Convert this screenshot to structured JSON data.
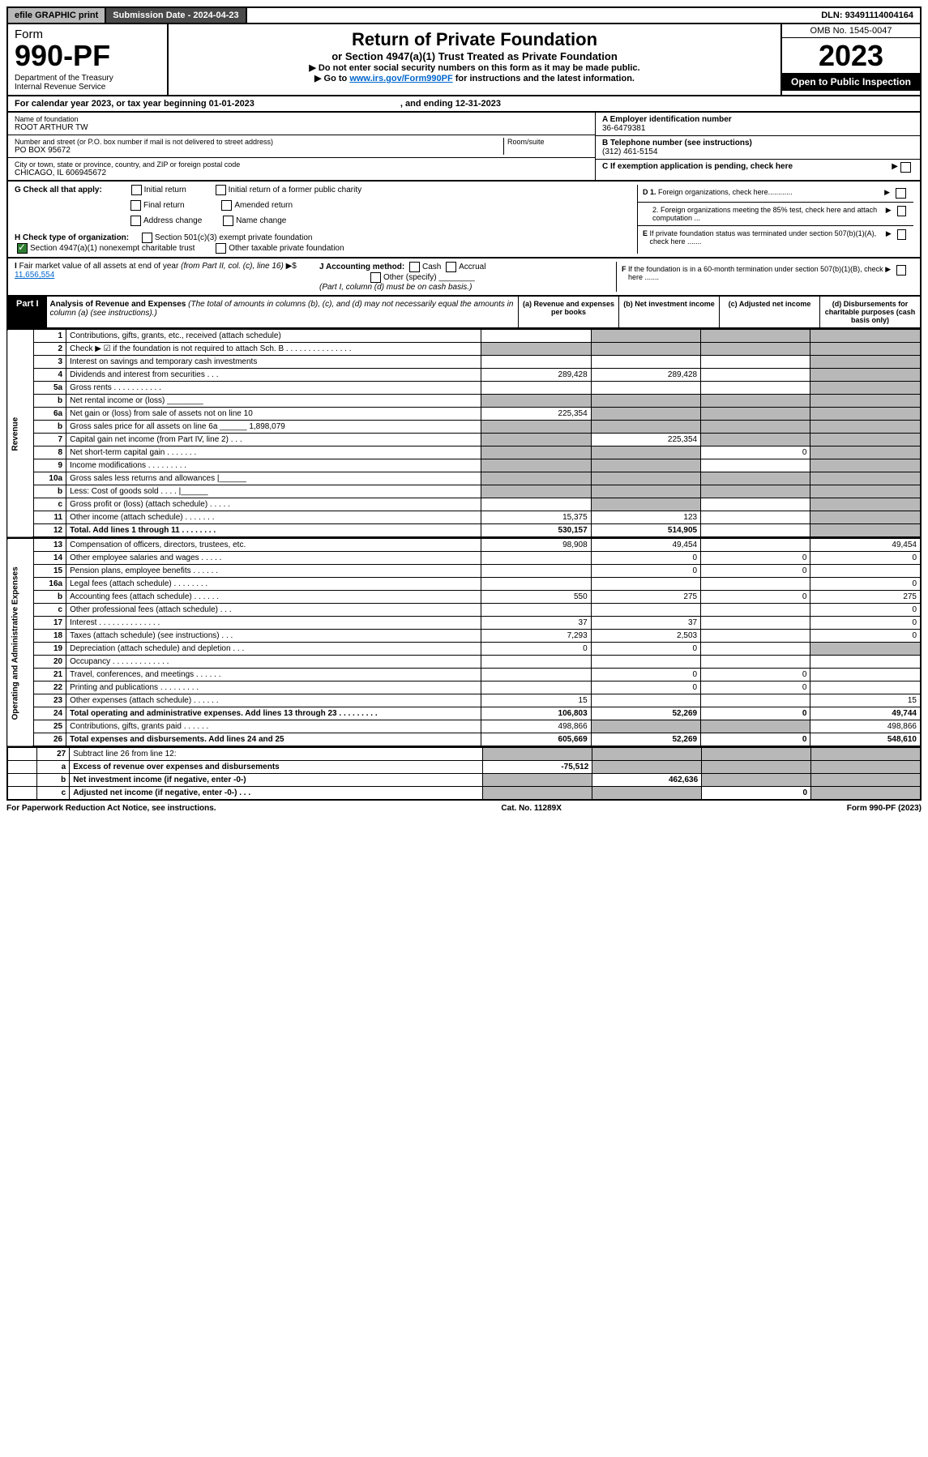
{
  "topbar": {
    "efile": "efile GRAPHIC print",
    "subdate_label": "Submission Date - ",
    "subdate": "2024-04-23",
    "dln_label": "DLN: ",
    "dln": "93491114004164"
  },
  "header": {
    "form_label": "Form",
    "form_no": "990-PF",
    "dept": "Department of the Treasury\nInternal Revenue Service",
    "title": "Return of Private Foundation",
    "subtitle": "or Section 4947(a)(1) Trust Treated as Private Foundation",
    "instr1": "▶ Do not enter social security numbers on this form as it may be made public.",
    "instr2": "▶ Go to ",
    "instr_link": "www.irs.gov/Form990PF",
    "instr3": " for instructions and the latest information.",
    "omb": "OMB No. 1545-0047",
    "year": "2023",
    "open": "Open to Public Inspection"
  },
  "calyear": {
    "text": "For calendar year 2023, or tax year beginning 01-01-2023",
    "ending": ", and ending 12-31-2023"
  },
  "foundation": {
    "name_label": "Name of foundation",
    "name": "ROOT ARTHUR TW",
    "addr_label": "Number and street (or P.O. box number if mail is not delivered to street address)",
    "room_label": "Room/suite",
    "addr": "PO BOX 95672",
    "city_label": "City or town, state or province, country, and ZIP or foreign postal code",
    "city": "CHICAGO, IL  606945672",
    "ein_label": "A Employer identification number",
    "ein": "36-6479381",
    "phone_label": "B Telephone number (see instructions)",
    "phone": "(312) 461-5154",
    "c_label": "C If exemption application is pending, check here",
    "d1": "D 1. Foreign organizations, check here............",
    "d2": "2. Foreign organizations meeting the 85% test, check here and attach computation ...",
    "e_label": "E If private foundation status was terminated under section 507(b)(1)(A), check here .......",
    "f_label": "F If the foundation is in a 60-month termination under section 507(b)(1)(B), check here ......."
  },
  "g": {
    "label": "G Check all that apply:",
    "initial": "Initial return",
    "initial_former": "Initial return of a former public charity",
    "final": "Final return",
    "amended": "Amended return",
    "addr_change": "Address change",
    "name_change": "Name change"
  },
  "h": {
    "label": "H Check type of organization:",
    "s501": "Section 501(c)(3) exempt private foundation",
    "s4947": "Section 4947(a)(1) nonexempt charitable trust",
    "other_tax": "Other taxable private foundation"
  },
  "i": {
    "label": "I Fair market value of all assets at end of year (from Part II, col. (c), line 16)",
    "amount": "11,656,554"
  },
  "j": {
    "label": "J Accounting method:",
    "cash": "Cash",
    "accrual": "Accrual",
    "other": "Other (specify)",
    "note": "(Part I, column (d) must be on cash basis.)"
  },
  "part1": {
    "label": "Part I",
    "title": "Analysis of Revenue and Expenses",
    "note": "(The total of amounts in columns (b), (c), and (d) may not necessarily equal the amounts in column (a) (see instructions).)",
    "col_a": "(a) Revenue and expenses per books",
    "col_b": "(b) Net investment income",
    "col_c": "(c) Adjusted net income",
    "col_d": "(d) Disbursements for charitable purposes (cash basis only)"
  },
  "rev_label": "Revenue",
  "exp_label": "Operating and Administrative Expenses",
  "rows": [
    {
      "n": "1",
      "d": "Contributions, gifts, grants, etc., received (attach schedule)",
      "a": "",
      "b": "shade",
      "c": "shade",
      "e": "shade"
    },
    {
      "n": "2",
      "d": "Check ▶ ☑ if the foundation is not required to attach Sch. B   .   .   .   .   .   .   .   .   .   .   .   .   .   .   .",
      "a": "shade",
      "b": "shade",
      "c": "shade",
      "e": "shade"
    },
    {
      "n": "3",
      "d": "Interest on savings and temporary cash investments",
      "a": "",
      "b": "",
      "c": "",
      "e": "shade"
    },
    {
      "n": "4",
      "d": "Dividends and interest from securities   .   .   .",
      "a": "289,428",
      "b": "289,428",
      "c": "",
      "e": "shade"
    },
    {
      "n": "5a",
      "d": "Gross rents   .   .   .   .   .   .   .   .   .   .   .",
      "a": "",
      "b": "",
      "c": "",
      "e": "shade"
    },
    {
      "n": "b",
      "d": "Net rental income or (loss)  ________",
      "a": "shade",
      "b": "shade",
      "c": "shade",
      "e": "shade"
    },
    {
      "n": "6a",
      "d": "Net gain or (loss) from sale of assets not on line 10",
      "a": "225,354",
      "b": "shade",
      "c": "shade",
      "e": "shade"
    },
    {
      "n": "b",
      "d": "Gross sales price for all assets on line 6a ______ 1,898,079",
      "a": "shade",
      "b": "shade",
      "c": "shade",
      "e": "shade"
    },
    {
      "n": "7",
      "d": "Capital gain net income (from Part IV, line 2)   .   .   .",
      "a": "shade",
      "b": "225,354",
      "c": "shade",
      "e": "shade"
    },
    {
      "n": "8",
      "d": "Net short-term capital gain   .   .   .   .   .   .   .",
      "a": "shade",
      "b": "shade",
      "c": "0",
      "e": "shade"
    },
    {
      "n": "9",
      "d": "Income modifications   .   .   .   .   .   .   .   .   .",
      "a": "shade",
      "b": "shade",
      "c": "",
      "e": "shade"
    },
    {
      "n": "10a",
      "d": "Gross sales less returns and allowances  |______",
      "a": "shade",
      "b": "shade",
      "c": "shade",
      "e": "shade"
    },
    {
      "n": "b",
      "d": "Less: Cost of goods sold   .   .   .   .   |______",
      "a": "shade",
      "b": "shade",
      "c": "shade",
      "e": "shade"
    },
    {
      "n": "c",
      "d": "Gross profit or (loss) (attach schedule)   .   .   .   .   .",
      "a": "",
      "b": "shade",
      "c": "",
      "e": "shade"
    },
    {
      "n": "11",
      "d": "Other income (attach schedule)   .   .   .   .   .   .   .",
      "a": "15,375",
      "b": "123",
      "c": "",
      "e": "shade"
    },
    {
      "n": "12",
      "d": "Total. Add lines 1 through 11   .   .   .   .   .   .   .   .",
      "a": "530,157",
      "b": "514,905",
      "c": "",
      "e": "shade",
      "bold": true
    }
  ],
  "exp_rows": [
    {
      "n": "13",
      "d": "Compensation of officers, directors, trustees, etc.",
      "a": "98,908",
      "b": "49,454",
      "c": "",
      "e": "49,454"
    },
    {
      "n": "14",
      "d": "Other employee salaries and wages  .   .   .   .   .",
      "a": "",
      "b": "0",
      "c": "0",
      "e": "0"
    },
    {
      "n": "15",
      "d": "Pension plans, employee benefits   .   .   .   .   .   .",
      "a": "",
      "b": "0",
      "c": "0",
      "e": ""
    },
    {
      "n": "16a",
      "d": "Legal fees (attach schedule)   .   .   .   .   .   .   .   .",
      "a": "",
      "b": "",
      "c": "",
      "e": "0"
    },
    {
      "n": "b",
      "d": "Accounting fees (attach schedule)   .   .   .   .   .   .",
      "a": "550",
      "b": "275",
      "c": "0",
      "e": "275"
    },
    {
      "n": "c",
      "d": "Other professional fees (attach schedule)   .   .   .",
      "a": "",
      "b": "",
      "c": "",
      "e": "0"
    },
    {
      "n": "17",
      "d": "Interest   .   .   .   .   .   .   .   .   .   .   .   .   .   .",
      "a": "37",
      "b": "37",
      "c": "",
      "e": "0"
    },
    {
      "n": "18",
      "d": "Taxes (attach schedule) (see instructions)   .   .   .",
      "a": "7,293",
      "b": "2,503",
      "c": "",
      "e": "0"
    },
    {
      "n": "19",
      "d": "Depreciation (attach schedule) and depletion   .   .   .",
      "a": "0",
      "b": "0",
      "c": "",
      "e": "shade"
    },
    {
      "n": "20",
      "d": "Occupancy   .   .   .   .   .   .   .   .   .   .   .   .   .",
      "a": "",
      "b": "",
      "c": "",
      "e": ""
    },
    {
      "n": "21",
      "d": "Travel, conferences, and meetings   .   .   .   .   .   .",
      "a": "",
      "b": "0",
      "c": "0",
      "e": ""
    },
    {
      "n": "22",
      "d": "Printing and publications   .   .   .   .   .   .   .   .   .",
      "a": "",
      "b": "0",
      "c": "0",
      "e": ""
    },
    {
      "n": "23",
      "d": "Other expenses (attach schedule)   .   .   .   .   .   .",
      "a": "15",
      "b": "",
      "c": "",
      "e": "15"
    },
    {
      "n": "24",
      "d": "Total operating and administrative expenses. Add lines 13 through 23   .   .   .   .   .   .   .   .   .",
      "a": "106,803",
      "b": "52,269",
      "c": "0",
      "e": "49,744",
      "bold": true
    },
    {
      "n": "25",
      "d": "Contributions, gifts, grants paid   .   .   .   .   .   .",
      "a": "498,866",
      "b": "shade",
      "c": "shade",
      "e": "498,866"
    },
    {
      "n": "26",
      "d": "Total expenses and disbursements. Add lines 24 and 25",
      "a": "605,669",
      "b": "52,269",
      "c": "0",
      "e": "548,610",
      "bold": true
    }
  ],
  "net_rows": [
    {
      "n": "27",
      "d": "Subtract line 26 from line 12:",
      "a": "shade",
      "b": "shade",
      "c": "shade",
      "e": "shade"
    },
    {
      "n": "a",
      "d": "Excess of revenue over expenses and disbursements",
      "a": "-75,512",
      "b": "shade",
      "c": "shade",
      "e": "shade",
      "bold": true
    },
    {
      "n": "b",
      "d": "Net investment income (if negative, enter -0-)",
      "a": "shade",
      "b": "462,636",
      "c": "shade",
      "e": "shade",
      "bold": true
    },
    {
      "n": "c",
      "d": "Adjusted net income (if negative, enter -0-)   .   .   .",
      "a": "shade",
      "b": "shade",
      "c": "0",
      "e": "shade",
      "bold": true
    }
  ],
  "footer": {
    "left": "For Paperwork Reduction Act Notice, see instructions.",
    "mid": "Cat. No. 11289X",
    "right": "Form 990-PF (2023)"
  }
}
